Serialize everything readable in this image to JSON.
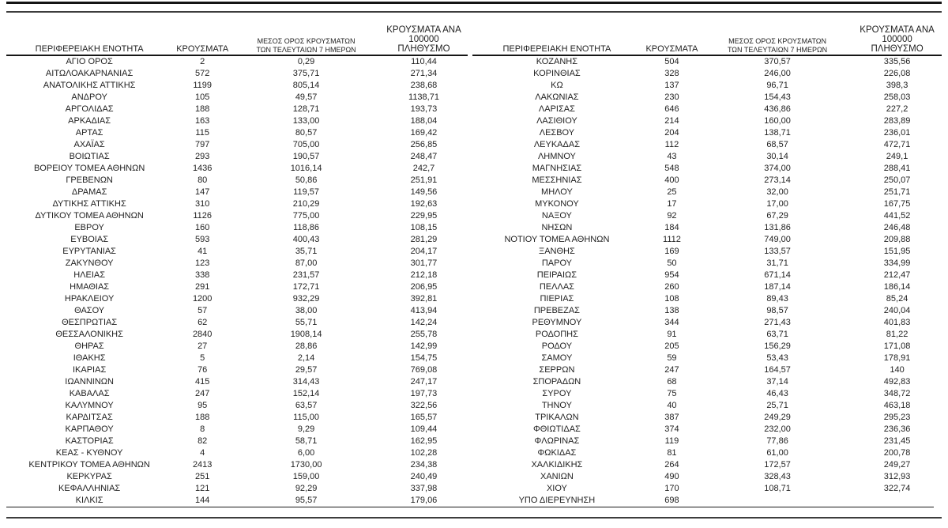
{
  "meta": {
    "text_color": "#1f1f1f",
    "rule_color": "#141414",
    "background": "#ffffff"
  },
  "table": {
    "headers": [
      "ΠΕΡΙΦΕΡΕΙΑΚΗ ΕΝΟΤΗΤΑ",
      "ΚΡΟΥΣΜΑΤΑ",
      "ΜΕΣΟΣ ΟΡΟΣ ΚΡΟΥΣΜΑΤΩΝ\nΤΩΝ ΤΕΛΕΥΤΑΙΩΝ 7 ΗΜΕΡΩΝ",
      "ΚΡΟΥΣΜΑΤΑ ΑΝΑ 100000\nΠΛΗΘΥΣΜΟ"
    ],
    "left_rows": [
      [
        "ΑΓΙΟ ΟΡΟΣ",
        "2",
        "0,29",
        "110,44"
      ],
      [
        "ΑΙΤΩΛΟΑΚΑΡΝΑΝΙΑΣ",
        "572",
        "375,71",
        "271,34"
      ],
      [
        "ΑΝΑΤΟΛΙΚΗΣ ΑΤΤΙΚΗΣ",
        "1199",
        "805,14",
        "238,68"
      ],
      [
        "ΑΝΔΡΟΥ",
        "105",
        "49,57",
        "1138,71"
      ],
      [
        "ΑΡΓΟΛΙΔΑΣ",
        "188",
        "128,71",
        "193,73"
      ],
      [
        "ΑΡΚΑΔΙΑΣ",
        "163",
        "133,00",
        "188,04"
      ],
      [
        "ΑΡΤΑΣ",
        "115",
        "80,57",
        "169,42"
      ],
      [
        "ΑΧΑΪΑΣ",
        "797",
        "705,00",
        "256,85"
      ],
      [
        "ΒΟΙΩΤΙΑΣ",
        "293",
        "190,57",
        "248,47"
      ],
      [
        "ΒΟΡΕΙΟΥ ΤΟΜΕΑ ΑΘΗΝΩΝ",
        "1436",
        "1016,14",
        "242,7"
      ],
      [
        "ΓΡΕΒΕΝΩΝ",
        "80",
        "50,86",
        "251,91"
      ],
      [
        "ΔΡΑΜΑΣ",
        "147",
        "119,57",
        "149,56"
      ],
      [
        "ΔΥΤΙΚΗΣ ΑΤΤΙΚΗΣ",
        "310",
        "210,29",
        "192,63"
      ],
      [
        "ΔΥΤΙΚΟΥ ΤΟΜΕΑ ΑΘΗΝΩΝ",
        "1126",
        "775,00",
        "229,95"
      ],
      [
        "ΕΒΡΟΥ",
        "160",
        "118,86",
        "108,15"
      ],
      [
        "ΕΥΒΟΙΑΣ",
        "593",
        "400,43",
        "281,29"
      ],
      [
        "ΕΥΡΥΤΑΝΙΑΣ",
        "41",
        "35,71",
        "204,17"
      ],
      [
        "ΖΑΚΥΝΘΟΥ",
        "123",
        "87,00",
        "301,77"
      ],
      [
        "ΗΛΕΙΑΣ",
        "338",
        "231,57",
        "212,18"
      ],
      [
        "ΗΜΑΘΙΑΣ",
        "291",
        "172,71",
        "206,95"
      ],
      [
        "ΗΡΑΚΛΕΙΟΥ",
        "1200",
        "932,29",
        "392,81"
      ],
      [
        "ΘΑΣΟΥ",
        "57",
        "38,00",
        "413,94"
      ],
      [
        "ΘΕΣΠΡΩΤΙΑΣ",
        "62",
        "55,71",
        "142,24"
      ],
      [
        "ΘΕΣΣΑΛΟΝΙΚΗΣ",
        "2840",
        "1908,14",
        "255,78"
      ],
      [
        "ΘΗΡΑΣ",
        "27",
        "28,86",
        "142,99"
      ],
      [
        "ΙΘΑΚΗΣ",
        "5",
        "2,14",
        "154,75"
      ],
      [
        "ΙΚΑΡΙΑΣ",
        "76",
        "29,57",
        "769,08"
      ],
      [
        "ΙΩΑΝΝΙΝΩΝ",
        "415",
        "314,43",
        "247,17"
      ],
      [
        "ΚΑΒΑΛΑΣ",
        "247",
        "152,14",
        "197,73"
      ],
      [
        "ΚΑΛΥΜΝΟΥ",
        "95",
        "63,57",
        "322,56"
      ],
      [
        "ΚΑΡΔΙΤΣΑΣ",
        "188",
        "115,00",
        "165,57"
      ],
      [
        "ΚΑΡΠΑΘΟΥ",
        "8",
        "9,29",
        "109,44"
      ],
      [
        "ΚΑΣΤΟΡΙΑΣ",
        "82",
        "58,71",
        "162,95"
      ],
      [
        "ΚΕΑΣ - ΚΥΘΝΟΥ",
        "4",
        "6,00",
        "102,28"
      ],
      [
        "ΚΕΝΤΡΙΚΟΥ ΤΟΜΕΑ ΑΘΗΝΩΝ",
        "2413",
        "1730,00",
        "234,38"
      ],
      [
        "ΚΕΡΚΥΡΑΣ",
        "251",
        "159,00",
        "240,49"
      ],
      [
        "ΚΕΦΑΛΛΗΝΙΑΣ",
        "121",
        "92,29",
        "337,98"
      ],
      [
        "ΚΙΛΚΙΣ",
        "144",
        "95,57",
        "179,06"
      ]
    ],
    "right_rows": [
      [
        "ΚΟΖΑΝΗΣ",
        "504",
        "370,57",
        "335,56"
      ],
      [
        "ΚΟΡΙΝΘΙΑΣ",
        "328",
        "246,00",
        "226,08"
      ],
      [
        "ΚΩ",
        "137",
        "96,71",
        "398,3"
      ],
      [
        "ΛΑΚΩΝΙΑΣ",
        "230",
        "154,43",
        "258,03"
      ],
      [
        "ΛΑΡΙΣΑΣ",
        "646",
        "436,86",
        "227,2"
      ],
      [
        "ΛΑΣΙΘΙΟΥ",
        "214",
        "160,00",
        "283,89"
      ],
      [
        "ΛΕΣΒΟΥ",
        "204",
        "138,71",
        "236,01"
      ],
      [
        "ΛΕΥΚΑΔΑΣ",
        "112",
        "68,57",
        "472,71"
      ],
      [
        "ΛΗΜΝΟΥ",
        "43",
        "30,14",
        "249,1"
      ],
      [
        "ΜΑΓΝΗΣΙΑΣ",
        "548",
        "374,00",
        "288,41"
      ],
      [
        "ΜΕΣΣΗΝΙΑΣ",
        "400",
        "273,14",
        "250,07"
      ],
      [
        "ΜΗΛΟΥ",
        "25",
        "32,00",
        "251,71"
      ],
      [
        "ΜΥΚΟΝΟΥ",
        "17",
        "17,00",
        "167,75"
      ],
      [
        "ΝΑΞΟΥ",
        "92",
        "67,29",
        "441,52"
      ],
      [
        "ΝΗΣΩΝ",
        "184",
        "131,86",
        "246,48"
      ],
      [
        "ΝΟΤΙΟΥ ΤΟΜΕΑ ΑΘΗΝΩΝ",
        "1112",
        "749,00",
        "209,88"
      ],
      [
        "ΞΑΝΘΗΣ",
        "169",
        "133,57",
        "151,95"
      ],
      [
        "ΠΑΡΟΥ",
        "50",
        "31,71",
        "334,99"
      ],
      [
        "ΠΕΙΡΑΙΩΣ",
        "954",
        "671,14",
        "212,47"
      ],
      [
        "ΠΕΛΛΑΣ",
        "260",
        "187,14",
        "186,14"
      ],
      [
        "ΠΙΕΡΙΑΣ",
        "108",
        "89,43",
        "85,24"
      ],
      [
        "ΠΡΕΒΕΖΑΣ",
        "138",
        "98,57",
        "240,04"
      ],
      [
        "ΡΕΘΥΜΝΟΥ",
        "344",
        "271,43",
        "401,83"
      ],
      [
        "ΡΟΔΟΠΗΣ",
        "91",
        "63,71",
        "81,22"
      ],
      [
        "ΡΟΔΟΥ",
        "205",
        "156,29",
        "171,08"
      ],
      [
        "ΣΑΜΟΥ",
        "59",
        "53,43",
        "178,91"
      ],
      [
        "ΣΕΡΡΩΝ",
        "247",
        "164,57",
        "140"
      ],
      [
        "ΣΠΟΡΑΔΩΝ",
        "68",
        "37,14",
        "492,83"
      ],
      [
        "ΣΥΡΟΥ",
        "75",
        "46,43",
        "348,72"
      ],
      [
        "ΤΗΝΟΥ",
        "40",
        "25,71",
        "463,18"
      ],
      [
        "ΤΡΙΚΑΛΩΝ",
        "387",
        "249,29",
        "295,23"
      ],
      [
        "ΦΘΙΩΤΙΔΑΣ",
        "374",
        "232,00",
        "236,36"
      ],
      [
        "ΦΛΩΡΙΝΑΣ",
        "119",
        "77,86",
        "231,45"
      ],
      [
        "ΦΩΚΙΔΑΣ",
        "81",
        "61,00",
        "200,78"
      ],
      [
        "ΧΑΛΚΙΔΙΚΗΣ",
        "264",
        "172,57",
        "249,27"
      ],
      [
        "ΧΑΝΙΩΝ",
        "490",
        "328,43",
        "312,93"
      ],
      [
        "ΧΙΟΥ",
        "170",
        "108,71",
        "322,74"
      ],
      [
        "ΥΠΟ ΔΙΕΡΕΥΝΗΣΗ",
        "698",
        "",
        ""
      ]
    ]
  }
}
